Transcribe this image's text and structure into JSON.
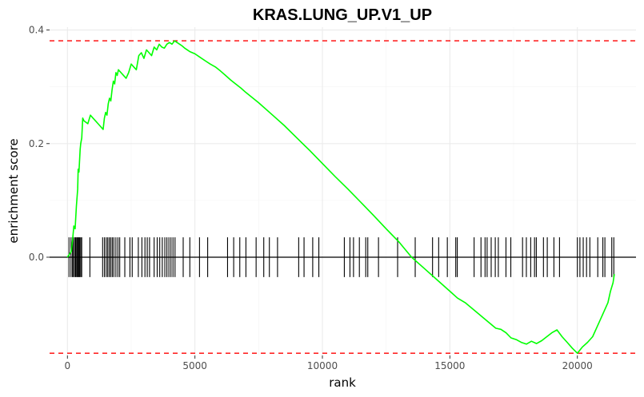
{
  "chart_data": {
    "type": "line",
    "title": "KRAS.LUNG_UP.V1_UP",
    "xlabel": "rank",
    "ylabel": "enrichment score",
    "xlim": [
      -700,
      22300
    ],
    "ylim": [
      -0.173,
      0.405
    ],
    "x_ticks": [
      0,
      5000,
      10000,
      15000,
      20000
    ],
    "x_tick_labels": [
      "0",
      "5000",
      "10000",
      "15000",
      "20000"
    ],
    "y_ticks": [
      0.0,
      0.2,
      0.4
    ],
    "y_tick_labels": [
      "0.0",
      "0.2",
      "0.4"
    ],
    "grid": true,
    "colors": {
      "curve": "#00ff00",
      "dashed": "#ff0000",
      "zero_line": "#000000",
      "ticks": "#000000"
    },
    "reference_lines": [
      0.381,
      -0.169
    ],
    "series": [
      {
        "x": [
          0,
          150,
          200,
          250,
          300,
          350,
          400,
          420,
          450,
          500,
          520,
          560,
          600,
          650,
          800,
          900,
          1000,
          1100,
          1200,
          1300,
          1400,
          1450,
          1500,
          1550,
          1600,
          1650,
          1700,
          1750,
          1800,
          1850,
          1900,
          1950,
          2000,
          2100,
          2200,
          2300,
          2400,
          2500,
          2600,
          2700,
          2800,
          2900,
          3000,
          3100,
          3200,
          3300,
          3400,
          3500,
          3600,
          3700,
          3800,
          3900,
          4000,
          4100,
          4200,
          4300,
          4400,
          4500,
          4600,
          4700,
          4800,
          4900,
          5000,
          5200,
          5400,
          5600,
          5800,
          6000,
          6200,
          6400,
          6600,
          6800,
          7000,
          7500,
          8000,
          8500,
          9000,
          9500,
          10000,
          10500,
          11000,
          11500,
          12000,
          12500,
          13000,
          13500,
          14000,
          14500,
          15000,
          15300,
          15600,
          16000,
          16400,
          16800,
          17000,
          17200,
          17400,
          17600,
          17800,
          18000,
          18200,
          18400,
          18600,
          18800,
          19000,
          19200,
          19400,
          19600,
          19800,
          20000,
          20200,
          20400,
          20600,
          20800,
          21000,
          21200,
          21300,
          21400,
          21450
        ],
        "y": [
          0.0,
          0.01,
          0.03,
          0.055,
          0.05,
          0.09,
          0.12,
          0.155,
          0.15,
          0.19,
          0.2,
          0.21,
          0.245,
          0.24,
          0.235,
          0.25,
          0.245,
          0.24,
          0.235,
          0.23,
          0.225,
          0.245,
          0.255,
          0.25,
          0.27,
          0.28,
          0.275,
          0.295,
          0.31,
          0.305,
          0.325,
          0.32,
          0.33,
          0.325,
          0.32,
          0.315,
          0.325,
          0.34,
          0.335,
          0.33,
          0.355,
          0.36,
          0.35,
          0.365,
          0.36,
          0.355,
          0.37,
          0.365,
          0.375,
          0.37,
          0.368,
          0.375,
          0.378,
          0.375,
          0.381,
          0.378,
          0.375,
          0.372,
          0.368,
          0.365,
          0.362,
          0.36,
          0.358,
          0.352,
          0.346,
          0.34,
          0.335,
          0.328,
          0.32,
          0.312,
          0.305,
          0.298,
          0.29,
          0.272,
          0.252,
          0.232,
          0.21,
          0.188,
          0.165,
          0.142,
          0.12,
          0.097,
          0.074,
          0.05,
          0.027,
          0.0,
          -0.02,
          -0.04,
          -0.06,
          -0.072,
          -0.08,
          -0.095,
          -0.11,
          -0.125,
          -0.127,
          -0.133,
          -0.142,
          -0.145,
          -0.15,
          -0.153,
          -0.148,
          -0.152,
          -0.147,
          -0.14,
          -0.133,
          -0.128,
          -0.14,
          -0.15,
          -0.16,
          -0.169,
          -0.158,
          -0.15,
          -0.14,
          -0.12,
          -0.1,
          -0.08,
          -0.06,
          -0.045,
          -0.03
        ]
      }
    ],
    "hit_ranks": [
      60,
      140,
      200,
      230,
      280,
      320,
      360,
      390,
      420,
      450,
      480,
      520,
      560,
      880,
      1380,
      1450,
      1520,
      1580,
      1640,
      1700,
      1760,
      1820,
      1900,
      1980,
      2050,
      2250,
      2450,
      2540,
      2780,
      2920,
      3040,
      3130,
      3220,
      3400,
      3520,
      3620,
      3720,
      3820,
      3900,
      3980,
      4060,
      4140,
      4220,
      4540,
      4800,
      5180,
      5500,
      6280,
      6520,
      6760,
      7000,
      7400,
      7700,
      7920,
      8240,
      9070,
      9280,
      9620,
      9860,
      10860,
      11080,
      11220,
      11450,
      11700,
      11780,
      12200,
      12950,
      13640,
      14320,
      14560,
      14900,
      15230,
      15290,
      15950,
      16220,
      16380,
      16460,
      16620,
      16780,
      16900,
      17200,
      17390,
      17850,
      18000,
      18170,
      18320,
      18390,
      18670,
      18820,
      19080,
      19300,
      20000,
      20100,
      20230,
      20360,
      20490,
      20800,
      21000,
      21080,
      21350,
      21430
    ]
  }
}
